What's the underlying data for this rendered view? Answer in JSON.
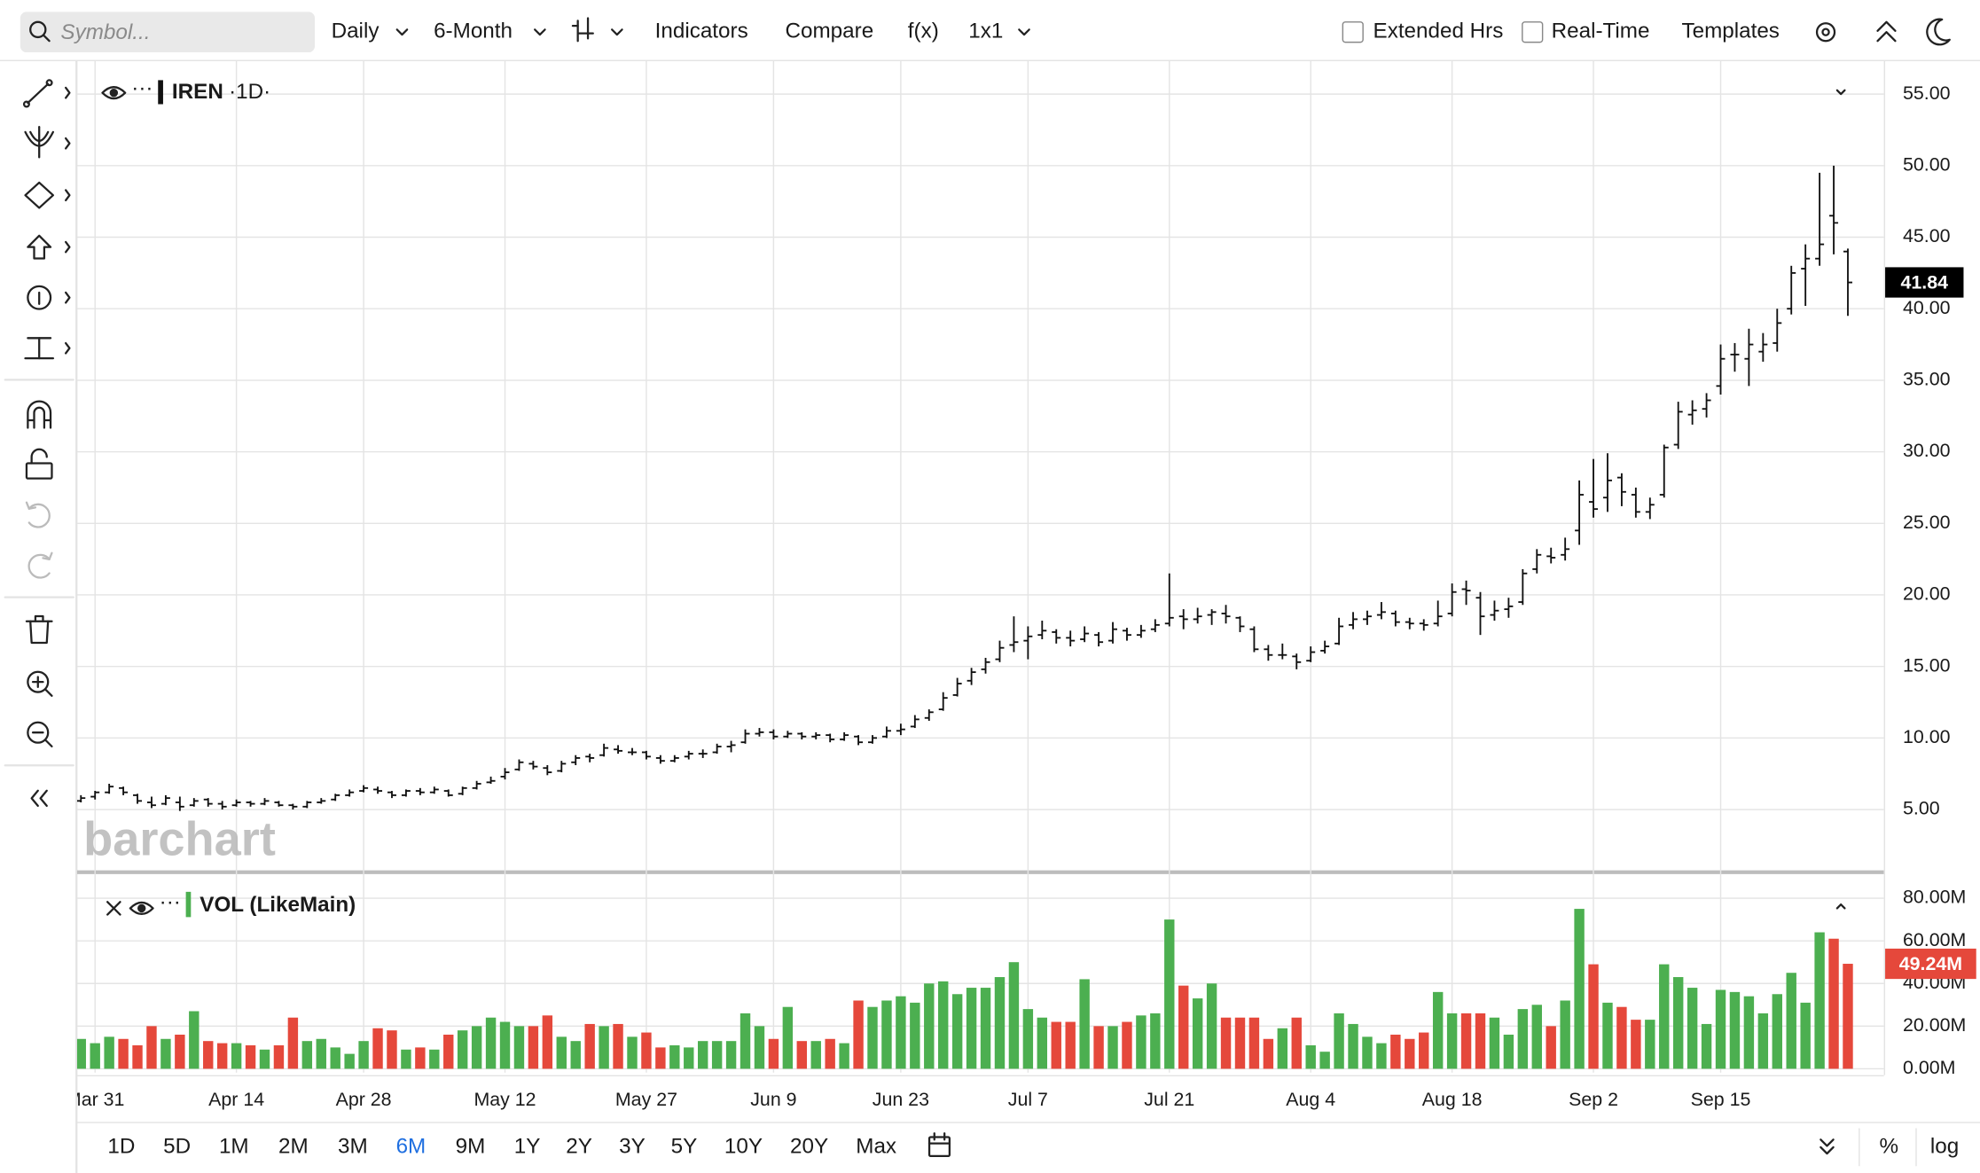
{
  "toolbar": {
    "search_placeholder": "Symbol...",
    "interval": "Daily",
    "range": "6-Month",
    "indicators": "Indicators",
    "compare": "Compare",
    "fx": "f(x)",
    "layout": "1x1",
    "extended_hours": "Extended Hrs",
    "real_time": "Real-Time",
    "templates": "Templates"
  },
  "chart_data": {
    "type": "ohlc",
    "symbol": "IREN",
    "interval_label": "·1D·",
    "watermark": "barchart",
    "categories": [
      null,
      "Mar 31",
      null,
      null,
      null,
      null,
      null,
      null,
      null,
      null,
      null,
      "Apr 14",
      null,
      null,
      null,
      null,
      null,
      null,
      null,
      null,
      "Apr 28",
      null,
      null,
      null,
      null,
      null,
      null,
      null,
      null,
      null,
      "May 12",
      null,
      null,
      null,
      null,
      null,
      null,
      null,
      null,
      null,
      "May 27",
      null,
      null,
      null,
      null,
      null,
      null,
      null,
      null,
      "Jun 9",
      null,
      null,
      null,
      null,
      null,
      null,
      null,
      null,
      "Jun 23",
      null,
      null,
      null,
      null,
      null,
      null,
      null,
      null,
      "Jul 7",
      null,
      null,
      null,
      null,
      null,
      null,
      null,
      null,
      null,
      "Jul 21",
      null,
      null,
      null,
      null,
      null,
      null,
      null,
      null,
      null,
      "Aug 4",
      null,
      null,
      null,
      null,
      null,
      null,
      null,
      null,
      null,
      "Aug 18",
      null,
      null,
      null,
      null,
      null,
      null,
      null,
      null,
      null,
      "Sep 2",
      null,
      null,
      null,
      null,
      null,
      null,
      null,
      null,
      "Sep 15",
      null,
      null,
      null,
      null,
      null,
      null,
      null,
      null,
      null
    ],
    "ohlc": [
      [
        5.6,
        6.0,
        5.5,
        5.8
      ],
      [
        5.9,
        6.3,
        5.7,
        6.2
      ],
      [
        6.2,
        6.8,
        6.1,
        6.6
      ],
      [
        6.5,
        6.6,
        6.0,
        6.2
      ],
      [
        6.0,
        6.1,
        5.4,
        5.6
      ],
      [
        5.5,
        5.9,
        5.1,
        5.3
      ],
      [
        5.4,
        6.0,
        5.3,
        5.8
      ],
      [
        5.5,
        5.9,
        4.9,
        5.2
      ],
      [
        5.3,
        5.8,
        5.2,
        5.6
      ],
      [
        5.7,
        5.8,
        5.2,
        5.4
      ],
      [
        5.4,
        5.6,
        5.0,
        5.2
      ],
      [
        5.3,
        5.7,
        5.2,
        5.5
      ],
      [
        5.5,
        5.6,
        5.2,
        5.4
      ],
      [
        5.4,
        5.8,
        5.3,
        5.6
      ],
      [
        5.5,
        5.6,
        5.2,
        5.3
      ],
      [
        5.3,
        5.4,
        5.0,
        5.2
      ],
      [
        5.2,
        5.6,
        5.1,
        5.5
      ],
      [
        5.5,
        5.8,
        5.4,
        5.6
      ],
      [
        5.7,
        6.1,
        5.6,
        6.0
      ],
      [
        6.0,
        6.4,
        5.9,
        6.2
      ],
      [
        6.3,
        6.7,
        6.2,
        6.5
      ],
      [
        6.4,
        6.6,
        6.1,
        6.3
      ],
      [
        6.2,
        6.3,
        5.8,
        6.0
      ],
      [
        6.0,
        6.4,
        5.9,
        6.3
      ],
      [
        6.3,
        6.5,
        6.0,
        6.2
      ],
      [
        6.2,
        6.6,
        6.1,
        6.4
      ],
      [
        6.3,
        6.4,
        5.9,
        6.0
      ],
      [
        6.1,
        6.6,
        6.0,
        6.5
      ],
      [
        6.5,
        7.0,
        6.4,
        6.8
      ],
      [
        6.9,
        7.3,
        6.8,
        7.0
      ],
      [
        7.3,
        7.9,
        7.1,
        7.6
      ],
      [
        7.8,
        8.5,
        7.7,
        8.3
      ],
      [
        8.2,
        8.4,
        7.8,
        8.0
      ],
      [
        7.9,
        8.1,
        7.4,
        7.6
      ],
      [
        7.7,
        8.4,
        7.6,
        8.2
      ],
      [
        8.3,
        8.8,
        8.1,
        8.6
      ],
      [
        8.7,
        8.9,
        8.3,
        8.6
      ],
      [
        8.8,
        9.6,
        8.7,
        9.3
      ],
      [
        9.2,
        9.5,
        8.9,
        9.1
      ],
      [
        9.0,
        9.3,
        8.8,
        9.0
      ],
      [
        9.0,
        9.1,
        8.5,
        8.7
      ],
      [
        8.6,
        8.8,
        8.2,
        8.4
      ],
      [
        8.4,
        8.8,
        8.3,
        8.6
      ],
      [
        8.7,
        9.1,
        8.5,
        8.9
      ],
      [
        8.9,
        9.2,
        8.6,
        8.9
      ],
      [
        9.0,
        9.6,
        8.9,
        9.4
      ],
      [
        9.4,
        9.8,
        9.0,
        9.5
      ],
      [
        9.7,
        10.6,
        9.6,
        10.3
      ],
      [
        10.3,
        10.7,
        10.1,
        10.4
      ],
      [
        10.4,
        10.6,
        9.9,
        10.1
      ],
      [
        10.1,
        10.5,
        10.0,
        10.3
      ],
      [
        10.3,
        10.4,
        9.9,
        10.1
      ],
      [
        10.1,
        10.4,
        9.9,
        10.2
      ],
      [
        10.2,
        10.3,
        9.7,
        9.9
      ],
      [
        9.9,
        10.4,
        9.8,
        10.2
      ],
      [
        10.1,
        10.2,
        9.5,
        9.7
      ],
      [
        9.7,
        10.2,
        9.6,
        10.0
      ],
      [
        10.1,
        10.8,
        10.0,
        10.5
      ],
      [
        10.5,
        11.0,
        10.2,
        10.6
      ],
      [
        10.8,
        11.6,
        10.7,
        11.3
      ],
      [
        11.4,
        12.0,
        11.2,
        11.8
      ],
      [
        12.0,
        13.2,
        11.9,
        12.8
      ],
      [
        13.0,
        14.2,
        12.9,
        13.8
      ],
      [
        14.0,
        14.9,
        13.7,
        14.6
      ],
      [
        14.8,
        15.6,
        14.5,
        15.3
      ],
      [
        15.5,
        16.8,
        15.3,
        16.3
      ],
      [
        16.5,
        18.5,
        16.0,
        16.7
      ],
      [
        16.8,
        17.8,
        15.5,
        17.1
      ],
      [
        17.2,
        18.2,
        16.9,
        17.5
      ],
      [
        17.4,
        17.6,
        16.6,
        17.0
      ],
      [
        17.0,
        17.5,
        16.4,
        16.8
      ],
      [
        16.9,
        17.8,
        16.7,
        17.3
      ],
      [
        17.2,
        17.4,
        16.4,
        16.7
      ],
      [
        16.8,
        18.1,
        16.6,
        17.6
      ],
      [
        17.5,
        17.7,
        16.8,
        17.2
      ],
      [
        17.2,
        17.9,
        17.0,
        17.5
      ],
      [
        17.6,
        18.3,
        17.4,
        17.9
      ],
      [
        18.0,
        21.5,
        17.8,
        18.4
      ],
      [
        18.5,
        19.0,
        17.6,
        18.3
      ],
      [
        18.3,
        19.1,
        18.0,
        18.5
      ],
      [
        18.6,
        19.0,
        17.9,
        18.8
      ],
      [
        18.7,
        19.3,
        18.0,
        18.5
      ],
      [
        18.4,
        18.5,
        17.4,
        17.8
      ],
      [
        17.6,
        17.8,
        16.0,
        16.2
      ],
      [
        16.2,
        16.5,
        15.4,
        15.8
      ],
      [
        15.8,
        16.6,
        15.5,
        15.8
      ],
      [
        15.7,
        15.9,
        14.8,
        15.3
      ],
      [
        15.4,
        16.4,
        15.3,
        16.0
      ],
      [
        16.1,
        16.8,
        15.9,
        16.4
      ],
      [
        16.6,
        18.4,
        16.5,
        17.8
      ],
      [
        17.9,
        18.8,
        17.6,
        18.3
      ],
      [
        18.3,
        18.9,
        17.9,
        18.5
      ],
      [
        18.6,
        19.5,
        18.3,
        18.8
      ],
      [
        18.7,
        18.9,
        17.8,
        18.1
      ],
      [
        18.1,
        18.4,
        17.6,
        18.0
      ],
      [
        18.0,
        18.3,
        17.5,
        17.9
      ],
      [
        18.0,
        19.6,
        17.8,
        18.5
      ],
      [
        18.7,
        20.8,
        18.5,
        20.2
      ],
      [
        20.4,
        21.0,
        19.3,
        20.3
      ],
      [
        19.8,
        20.2,
        17.2,
        18.5
      ],
      [
        18.6,
        19.6,
        18.2,
        18.9
      ],
      [
        19.0,
        19.8,
        18.4,
        19.2
      ],
      [
        19.5,
        21.8,
        19.3,
        21.5
      ],
      [
        21.8,
        23.2,
        21.5,
        22.8
      ],
      [
        22.7,
        23.3,
        22.2,
        22.6
      ],
      [
        22.8,
        24.0,
        22.4,
        23.2
      ],
      [
        24.5,
        28.0,
        23.5,
        27.0
      ],
      [
        26.5,
        29.5,
        25.4,
        26.0
      ],
      [
        26.8,
        29.9,
        25.8,
        28.0
      ],
      [
        28.2,
        28.5,
        26.2,
        27.2
      ],
      [
        27.0,
        27.5,
        25.4,
        25.8
      ],
      [
        25.8,
        26.8,
        25.3,
        26.3
      ],
      [
        27.0,
        30.5,
        26.8,
        30.3
      ],
      [
        30.5,
        33.5,
        30.2,
        32.8
      ],
      [
        32.6,
        33.6,
        31.9,
        32.9
      ],
      [
        33.0,
        34.1,
        32.4,
        33.6
      ],
      [
        34.6,
        37.5,
        34.0,
        36.5
      ],
      [
        36.8,
        37.6,
        35.6,
        36.8
      ],
      [
        36.5,
        38.6,
        34.6,
        37.5
      ],
      [
        37.0,
        38.3,
        36.3,
        37.5
      ],
      [
        37.6,
        40.0,
        37.0,
        39.0
      ],
      [
        40.0,
        43.0,
        39.6,
        42.5
      ],
      [
        42.8,
        44.5,
        40.2,
        43.5
      ],
      [
        43.5,
        49.5,
        43.0,
        44.5
      ],
      [
        46.5,
        50.0,
        43.8,
        46.0
      ],
      [
        44.0,
        44.2,
        39.5,
        41.84
      ]
    ],
    "color": "#111111",
    "ylim": [
      0.75,
      57.3
    ],
    "yticks": [
      {
        "value": 5,
        "label": "5.00"
      },
      {
        "value": 10,
        "label": "10.00"
      },
      {
        "value": 15,
        "label": "15.00"
      },
      {
        "value": 20,
        "label": "20.00"
      },
      {
        "value": 25,
        "label": "25.00"
      },
      {
        "value": 30,
        "label": "30.00"
      },
      {
        "value": 35,
        "label": "35.00"
      },
      {
        "value": 40,
        "label": "40.00"
      },
      {
        "value": 45,
        "label": "45.00"
      },
      {
        "value": 50,
        "label": "50.00"
      },
      {
        "value": 55,
        "label": "55.00"
      }
    ],
    "grid": true,
    "volume": {
      "name": "VOL (LikeMain)",
      "up_color": "#4caf50",
      "down_color": "#e5483b",
      "last_label": "49.24M",
      "values": [
        14,
        12,
        15,
        14,
        11,
        20,
        14,
        16,
        27,
        13,
        12,
        12,
        11,
        9,
        11,
        24,
        13,
        14,
        10,
        7,
        13,
        19,
        18,
        9,
        10,
        9,
        16,
        18,
        20,
        24,
        22,
        20,
        20,
        25,
        15,
        13,
        21,
        20,
        21,
        15,
        17,
        10,
        11,
        10,
        13,
        13,
        13,
        26,
        20,
        14,
        29,
        13,
        13,
        14,
        12,
        32,
        29,
        32,
        34,
        31,
        40,
        41,
        35,
        38,
        38,
        43,
        50,
        28,
        24,
        22,
        22,
        42,
        20,
        20,
        22,
        25,
        26,
        70,
        39,
        33,
        40,
        24,
        24,
        24,
        14,
        19,
        24,
        11,
        8,
        26,
        21,
        15,
        12,
        16,
        14,
        17,
        36,
        26,
        26,
        26,
        24,
        16,
        28,
        30,
        20,
        32,
        75,
        49,
        31,
        29,
        23,
        23,
        49,
        43,
        38,
        21,
        37,
        36,
        34,
        26,
        35,
        45,
        31,
        64,
        61,
        49.24
      ],
      "ylim": [
        -1.8,
        90.7
      ],
      "yticks": [
        {
          "value": 0,
          "label": "0.00M"
        },
        {
          "value": 20,
          "label": "20.00M"
        },
        {
          "value": 40,
          "label": "40.00M"
        },
        {
          "value": 60,
          "label": "60.00M"
        },
        {
          "value": 80,
          "label": "80.00M"
        }
      ]
    }
  },
  "range_bar": {
    "ranges": [
      "1D",
      "5D",
      "1M",
      "2M",
      "3M",
      "6M",
      "9M",
      "1Y",
      "2Y",
      "3Y",
      "5Y",
      "10Y",
      "20Y",
      "Max"
    ],
    "active_index": 5,
    "percent": "%",
    "log": "log"
  }
}
